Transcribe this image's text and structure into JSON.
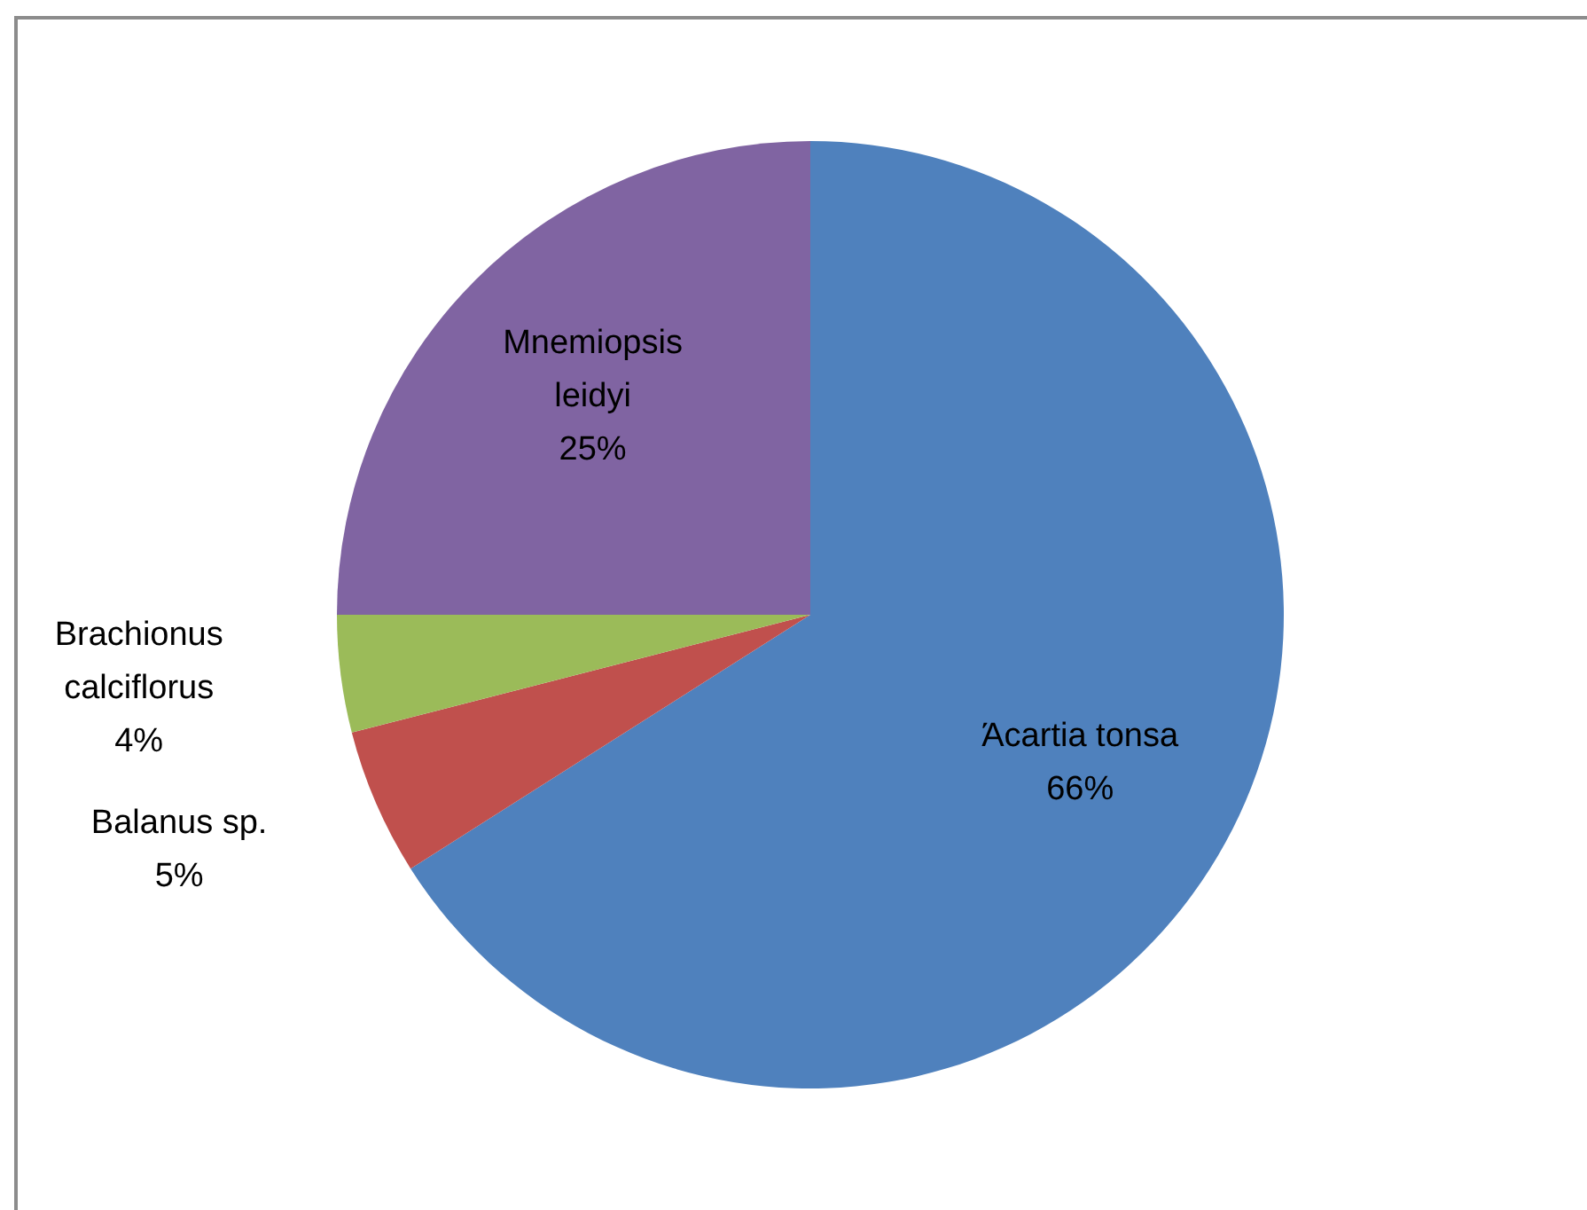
{
  "chart_data": {
    "type": "pie",
    "categories": [
      "Άcartia tonsa",
      "Balanus sp.",
      "Brachionus calciflorus",
      "Mnemiopsis leidyi"
    ],
    "values": [
      66,
      5,
      4,
      25
    ],
    "colors": [
      "#4f81bd",
      "#c0504d",
      "#9bbb59",
      "#8064a2"
    ],
    "value_labels": [
      "66%",
      "5%",
      "4%",
      "25%"
    ],
    "legend": false
  }
}
